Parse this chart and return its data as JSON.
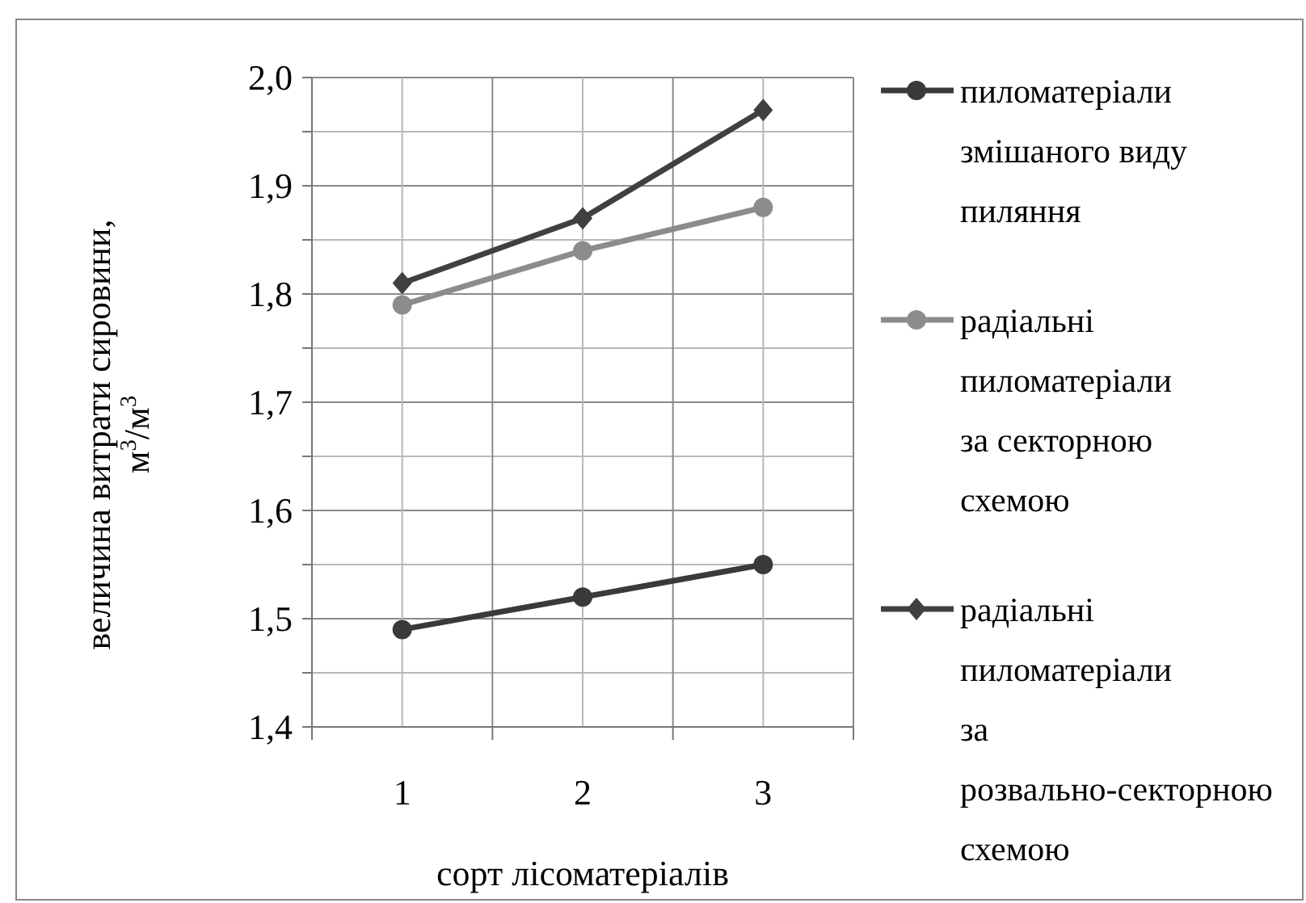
{
  "chart_data": {
    "type": "line",
    "xlabel": "сорт лісоматеріалів",
    "ylabel": "величина витрати сировини, м$^{3}$/м$^{3}$",
    "categories": [
      "1",
      "2",
      "3"
    ],
    "series": [
      {
        "name": "пиломатеріали змішаного виду пиляння",
        "color": "#3a3a3a",
        "marker": "circle",
        "values": [
          1.49,
          1.52,
          1.55
        ]
      },
      {
        "name": "радіальні пиломатеріали за секторною схемою",
        "color": "#8c8c8c",
        "marker": "circle",
        "values": [
          1.79,
          1.84,
          1.88
        ]
      },
      {
        "name": "радіальні пиломатеріали за розвально-секторною схемою",
        "color": "#404040",
        "marker": "diamond",
        "values": [
          1.81,
          1.87,
          1.97
        ]
      }
    ],
    "ylim": [
      1.4,
      2.0
    ],
    "yticks": [
      {
        "value": 1.4,
        "label": "1,4"
      },
      {
        "value": 1.45,
        "label": null
      },
      {
        "value": 1.5,
        "label": "1,5"
      },
      {
        "value": 1.55,
        "label": null
      },
      {
        "value": 1.6,
        "label": "1,6"
      },
      {
        "value": 1.65,
        "label": null
      },
      {
        "value": 1.7,
        "label": "1,7"
      },
      {
        "value": 1.75,
        "label": null
      },
      {
        "value": 1.8,
        "label": "1,8"
      },
      {
        "value": 1.85,
        "label": null
      },
      {
        "value": 1.9,
        "label": "1,9"
      },
      {
        "value": 1.95,
        "label": null
      },
      {
        "value": 2.0,
        "label": "2,0"
      }
    ],
    "grid": true,
    "legend": "right",
    "line_style": "solid"
  }
}
